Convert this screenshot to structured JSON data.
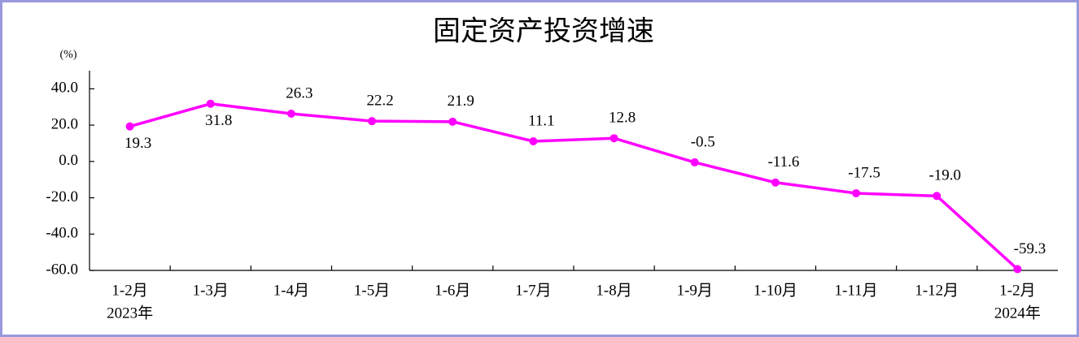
{
  "chart_data": {
    "type": "line",
    "title": "固定资产投资增速",
    "y_unit": "(%)",
    "categories": [
      "1-2月",
      "1-3月",
      "1-4月",
      "1-5月",
      "1-6月",
      "1-7月",
      "1-8月",
      "1-9月",
      "1-10月",
      "1-11月",
      "1-12月",
      "1-2月"
    ],
    "category_sublabels": [
      "2023年",
      null,
      null,
      null,
      null,
      null,
      null,
      null,
      null,
      null,
      null,
      "2024年"
    ],
    "series": [
      {
        "name": "固定资产投资增速",
        "color": "#ff00ff",
        "values": [
          19.3,
          31.8,
          26.3,
          22.2,
          21.9,
          11.1,
          12.8,
          -0.5,
          -11.6,
          -17.5,
          -19.0,
          -59.3
        ],
        "value_labels": [
          "19.3",
          "31.8",
          "26.3",
          "22.2",
          "21.9",
          "11.1",
          "12.8",
          "-0.5",
          "-11.6",
          "-17.5",
          "-19.0",
          "-59.3"
        ]
      }
    ],
    "ylim": [
      -60,
      50
    ],
    "yticks": [
      {
        "value": -60,
        "label": "-60.0"
      },
      {
        "value": -40,
        "label": "-40.0"
      },
      {
        "value": -20,
        "label": "-20.0"
      },
      {
        "value": 0,
        "label": "0.0"
      },
      {
        "value": 20,
        "label": "20.0"
      },
      {
        "value": 40,
        "label": "40.0"
      }
    ],
    "grid": false
  }
}
